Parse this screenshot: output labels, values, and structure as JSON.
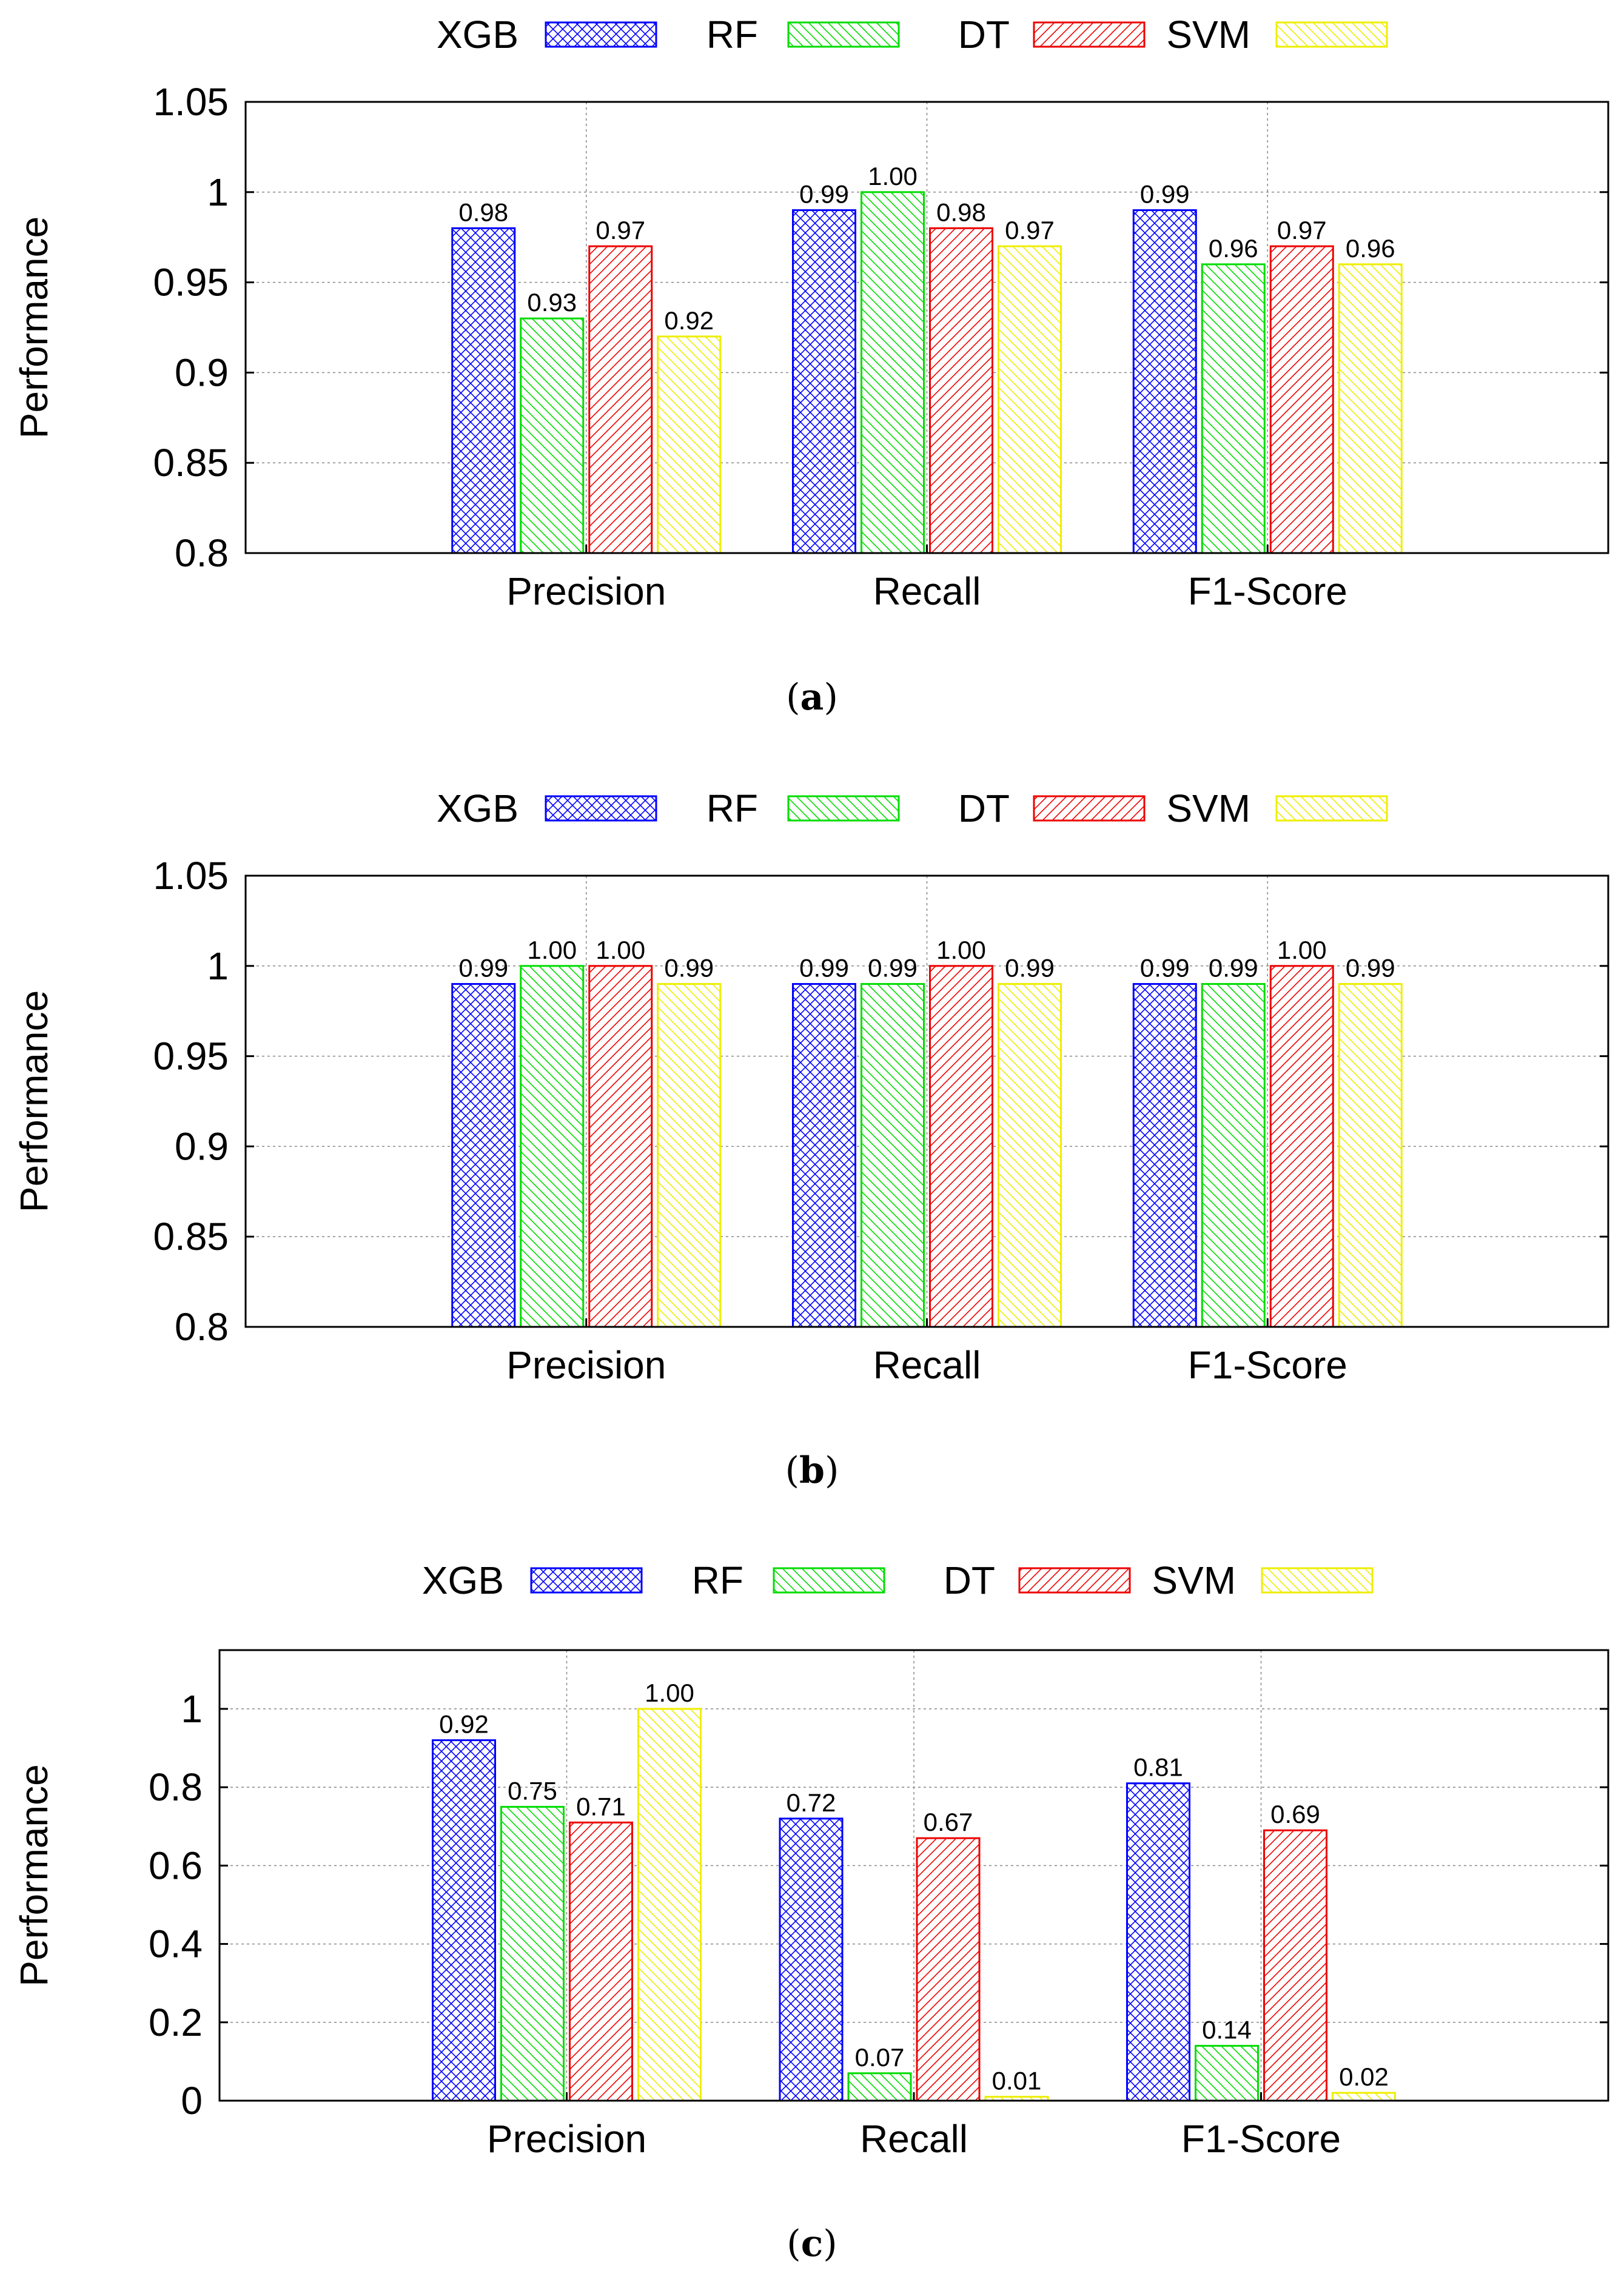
{
  "colors": {
    "XGB": "#0000ff",
    "RF": "#00dd00",
    "DT": "#ee0000",
    "SVM": "#eeee00",
    "axis": "#000000",
    "grid": "#888888"
  },
  "chart_data": [
    {
      "type": "bar",
      "panel": "(a)",
      "panel_letter": "a",
      "ylabel": "Performance",
      "xlabel": "",
      "ylim": [
        0.8,
        1.05
      ],
      "yticks": [
        "0.8",
        "0.85",
        "0.9",
        "0.95",
        "1",
        "1.05"
      ],
      "categories": [
        "Precision",
        "Recall",
        "F1-Score"
      ],
      "grid": true,
      "legend_position": "top",
      "series": [
        {
          "name": "XGB",
          "values": [
            0.98,
            0.99,
            0.99
          ],
          "labels": [
            "0.98",
            "0.99",
            "0.99"
          ]
        },
        {
          "name": "RF",
          "values": [
            0.93,
            1.0,
            0.96
          ],
          "labels": [
            "0.93",
            "1.00",
            "0.96"
          ]
        },
        {
          "name": "DT",
          "values": [
            0.97,
            0.98,
            0.97
          ],
          "labels": [
            "0.97",
            "0.98",
            "0.97"
          ]
        },
        {
          "name": "SVM",
          "values": [
            0.92,
            0.97,
            0.96
          ],
          "labels": [
            "0.92",
            "0.97",
            "0.96"
          ]
        }
      ]
    },
    {
      "type": "bar",
      "panel": "(b)",
      "panel_letter": "b",
      "ylabel": "Performance",
      "xlabel": "",
      "ylim": [
        0.8,
        1.05
      ],
      "yticks": [
        "0.8",
        "0.85",
        "0.9",
        "0.95",
        "1",
        "1.05"
      ],
      "categories": [
        "Precision",
        "Recall",
        "F1-Score"
      ],
      "grid": true,
      "legend_position": "top",
      "series": [
        {
          "name": "XGB",
          "values": [
            0.99,
            0.99,
            0.99
          ],
          "labels": [
            "0.99",
            "0.99",
            "0.99"
          ]
        },
        {
          "name": "RF",
          "values": [
            1.0,
            0.99,
            0.99
          ],
          "labels": [
            "1.00",
            "0.99",
            "0.99"
          ]
        },
        {
          "name": "DT",
          "values": [
            1.0,
            1.0,
            1.0
          ],
          "labels": [
            "1.00",
            "1.00",
            "1.00"
          ]
        },
        {
          "name": "SVM",
          "values": [
            0.99,
            0.99,
            0.99
          ],
          "labels": [
            "0.99",
            "0.99",
            "0.99"
          ]
        }
      ]
    },
    {
      "type": "bar",
      "panel": "(c)",
      "panel_letter": "c",
      "ylabel": "Performance",
      "xlabel": "",
      "ylim": [
        0,
        1.15
      ],
      "yticks": [
        "0",
        "0.2",
        "0.4",
        "0.6",
        "0.8",
        "1"
      ],
      "categories": [
        "Precision",
        "Recall",
        "F1-Score"
      ],
      "grid": true,
      "legend_position": "top",
      "series": [
        {
          "name": "XGB",
          "values": [
            0.92,
            0.72,
            0.81
          ],
          "labels": [
            "0.92",
            "0.72",
            "0.81"
          ]
        },
        {
          "name": "RF",
          "values": [
            0.75,
            0.07,
            0.14
          ],
          "labels": [
            "0.75",
            "0.07",
            "0.14"
          ]
        },
        {
          "name": "DT",
          "values": [
            0.71,
            0.67,
            0.69
          ],
          "labels": [
            "0.71",
            "0.67",
            "0.69"
          ]
        },
        {
          "name": "SVM",
          "values": [
            1.0,
            0.01,
            0.02
          ],
          "labels": [
            "1.00",
            "0.01",
            "0.02"
          ]
        }
      ]
    }
  ]
}
